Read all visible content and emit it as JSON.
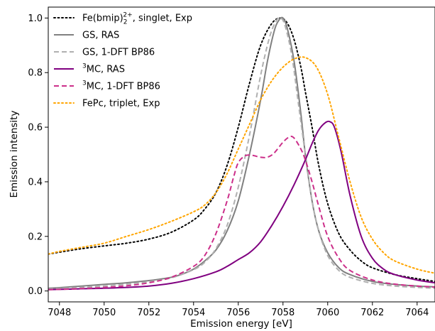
{
  "chart_data": {
    "type": "line",
    "xlabel": "Emission energy [eV]",
    "ylabel": "Emission intensity",
    "xlim": [
      7047.5,
      7064.8
    ],
    "ylim": [
      -0.04,
      1.04
    ],
    "xticks": [
      7048,
      7050,
      7052,
      7054,
      7056,
      7058,
      7060,
      7062,
      7064
    ],
    "yticks": [
      0.0,
      0.2,
      0.4,
      0.6,
      0.8,
      1.0
    ],
    "xtick_labels": [
      "7048",
      "7050",
      "7052",
      "7054",
      "7056",
      "7058",
      "7060",
      "7062",
      "7064"
    ],
    "ytick_labels": [
      "0.0",
      "0.2",
      "0.4",
      "0.6",
      "0.8",
      "1.0"
    ],
    "legend_placement": "top-left",
    "grid": false,
    "series": [
      {
        "label": {
          "pre": "Fe(bmip)",
          "sub": "2",
          "sup": "2+",
          "post": ", singlet, Exp"
        },
        "color": "#000000",
        "dash": "dotted",
        "x": [
          7047.5,
          7048,
          7049,
          7050,
          7051,
          7052,
          7053,
          7054,
          7054.5,
          7055,
          7055.5,
          7056,
          7056.5,
          7057,
          7057.5,
          7057.9,
          7058.2,
          7058.5,
          7058.8,
          7059,
          7059.3,
          7059.6,
          7060,
          7060.5,
          7061,
          7061.5,
          7062,
          7063,
          7064,
          7064.8
        ],
        "y": [
          0.135,
          0.142,
          0.155,
          0.165,
          0.175,
          0.19,
          0.215,
          0.26,
          0.3,
          0.36,
          0.46,
          0.6,
          0.76,
          0.9,
          0.98,
          1.0,
          0.98,
          0.92,
          0.82,
          0.73,
          0.6,
          0.46,
          0.32,
          0.21,
          0.15,
          0.11,
          0.085,
          0.06,
          0.045,
          0.035
        ]
      },
      {
        "label": {
          "pre": "GS, RAS"
        },
        "color": "#808080",
        "dash": "solid",
        "x": [
          7047.5,
          7048,
          7049,
          7050,
          7051,
          7052,
          7053,
          7053.5,
          7054,
          7054.5,
          7055,
          7055.5,
          7056,
          7056.5,
          7057,
          7057.3,
          7057.6,
          7057.8,
          7058,
          7058.2,
          7058.5,
          7058.8,
          7059,
          7059.3,
          7059.6,
          7060,
          7060.5,
          7061,
          7062,
          7063,
          7064,
          7064.8
        ],
        "y": [
          0.01,
          0.012,
          0.018,
          0.024,
          0.03,
          0.038,
          0.05,
          0.062,
          0.08,
          0.11,
          0.15,
          0.22,
          0.33,
          0.5,
          0.7,
          0.84,
          0.95,
          0.99,
          1.0,
          0.96,
          0.84,
          0.65,
          0.5,
          0.33,
          0.22,
          0.14,
          0.085,
          0.06,
          0.035,
          0.024,
          0.018,
          0.015
        ]
      },
      {
        "label": {
          "pre": "GS, 1-DFT BP86"
        },
        "color": "#b0b0b0",
        "dash": "dashed",
        "x": [
          7047.5,
          7048,
          7049,
          7050,
          7051,
          7052,
          7053,
          7054,
          7054.5,
          7055,
          7055.5,
          7056,
          7056.5,
          7057,
          7057.4,
          7057.7,
          7057.9,
          7058.1,
          7058.4,
          7058.7,
          7059,
          7059.3,
          7059.6,
          7060,
          7060.5,
          7061,
          7062,
          7063,
          7064,
          7064.8
        ],
        "y": [
          0.008,
          0.009,
          0.013,
          0.018,
          0.025,
          0.034,
          0.048,
          0.078,
          0.105,
          0.155,
          0.24,
          0.38,
          0.57,
          0.79,
          0.93,
          0.99,
          1.0,
          0.97,
          0.86,
          0.68,
          0.5,
          0.33,
          0.22,
          0.13,
          0.075,
          0.05,
          0.028,
          0.018,
          0.013,
          0.01
        ]
      },
      {
        "label": {
          "pre": "",
          "sup": "3",
          "post": "MC, RAS"
        },
        "color": "#800080",
        "dash": "solid",
        "x": [
          7047.5,
          7048,
          7049,
          7050,
          7051,
          7052,
          7053,
          7054,
          7055,
          7055.5,
          7056,
          7056.5,
          7057,
          7057.5,
          7058,
          7058.5,
          7059,
          7059.3,
          7059.6,
          7059.9,
          7060.1,
          7060.3,
          7060.6,
          7061,
          7061.5,
          7062,
          7062.5,
          7063,
          7064,
          7064.8
        ],
        "y": [
          0.005,
          0.006,
          0.008,
          0.01,
          0.013,
          0.018,
          0.028,
          0.045,
          0.07,
          0.09,
          0.115,
          0.14,
          0.18,
          0.24,
          0.31,
          0.39,
          0.48,
          0.54,
          0.59,
          0.617,
          0.62,
          0.6,
          0.51,
          0.35,
          0.2,
          0.12,
          0.08,
          0.06,
          0.04,
          0.03
        ]
      },
      {
        "label": {
          "pre": "",
          "sup": "3",
          "post": "MC, 1-DFT BP86"
        },
        "color": "#cc2f8a",
        "dash": "dashed",
        "x": [
          7047.5,
          7048,
          7049,
          7050,
          7051,
          7052,
          7053,
          7054,
          7054.5,
          7055,
          7055.5,
          7055.8,
          7056,
          7056.3,
          7056.6,
          7057,
          7057.3,
          7057.6,
          7058,
          7058.3,
          7058.5,
          7058.8,
          7059,
          7059.3,
          7059.6,
          7060,
          7060.5,
          7061,
          7062,
          7063,
          7064,
          7064.8
        ],
        "y": [
          0.005,
          0.006,
          0.009,
          0.013,
          0.019,
          0.03,
          0.05,
          0.09,
          0.13,
          0.21,
          0.33,
          0.42,
          0.47,
          0.495,
          0.497,
          0.49,
          0.49,
          0.505,
          0.545,
          0.565,
          0.56,
          0.52,
          0.48,
          0.4,
          0.31,
          0.2,
          0.12,
          0.075,
          0.04,
          0.025,
          0.018,
          0.014
        ]
      },
      {
        "label": {
          "pre": "FePc, triplet, Exp"
        },
        "color": "#ffa500",
        "dash": "dotted",
        "x": [
          7047.5,
          7048,
          7049,
          7050,
          7051,
          7052,
          7053,
          7054,
          7054.5,
          7055,
          7055.5,
          7056,
          7056.5,
          7057,
          7057.5,
          7058,
          7058.5,
          7059,
          7059.5,
          7060,
          7060.5,
          7061,
          7061.5,
          7062,
          7062.5,
          7063,
          7064,
          7064.8
        ],
        "y": [
          0.135,
          0.145,
          0.16,
          0.175,
          0.2,
          0.225,
          0.255,
          0.29,
          0.315,
          0.36,
          0.43,
          0.52,
          0.61,
          0.7,
          0.77,
          0.82,
          0.85,
          0.855,
          0.82,
          0.72,
          0.56,
          0.4,
          0.27,
          0.19,
          0.14,
          0.11,
          0.08,
          0.065
        ]
      }
    ]
  }
}
